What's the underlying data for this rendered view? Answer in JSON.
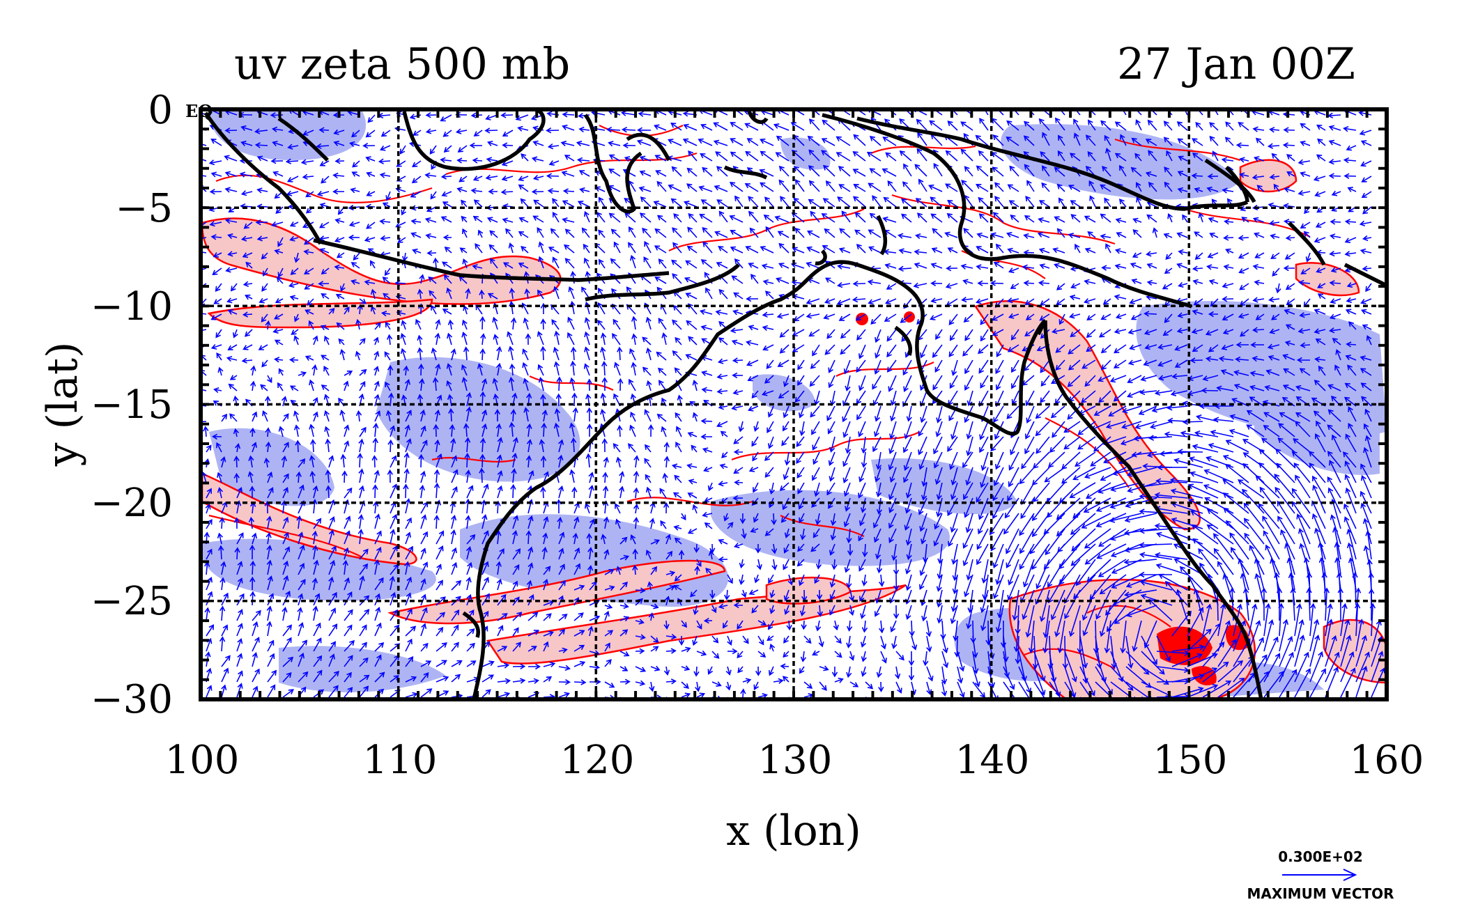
{
  "title_left": "uv zeta 500 mb",
  "title_right": "27 Jan 00Z",
  "xlabel": "x (lon)",
  "ylabel": "y (lat)",
  "eq_label": "EQ",
  "max_vector_value": "0.300E+02",
  "max_vector_label": "MAXIMUM VECTOR",
  "x_ticks": [
    "100",
    "110",
    "120",
    "130",
    "140",
    "150",
    "160"
  ],
  "y_ticks": [
    "0",
    "−5",
    "−10",
    "−15",
    "−20",
    "−25",
    "−30"
  ],
  "chart_data": {
    "type": "map",
    "title": "uv zeta 500 mb",
    "subtitle": "27 Jan 00Z",
    "xlabel": "x (lon)",
    "ylabel": "y (lat)",
    "xlim": [
      100,
      160
    ],
    "ylim": [
      -30,
      0
    ],
    "x_ticks": [
      100,
      110,
      120,
      130,
      140,
      150,
      160
    ],
    "y_ticks": [
      0,
      -5,
      -10,
      -15,
      -20,
      -25,
      -30
    ],
    "grid": true,
    "fields": [
      "wind vectors (u,v)",
      "relative vorticity zeta (positive shaded red, negative shaded blue)"
    ],
    "max_vector": "0.300E+02",
    "colors": {
      "positive_zeta": "#f7c6c6",
      "positive_contour": "#ff0000",
      "negative_zeta": "#aab0f2",
      "vectors": "#0000ff",
      "coastline": "#000000"
    }
  }
}
